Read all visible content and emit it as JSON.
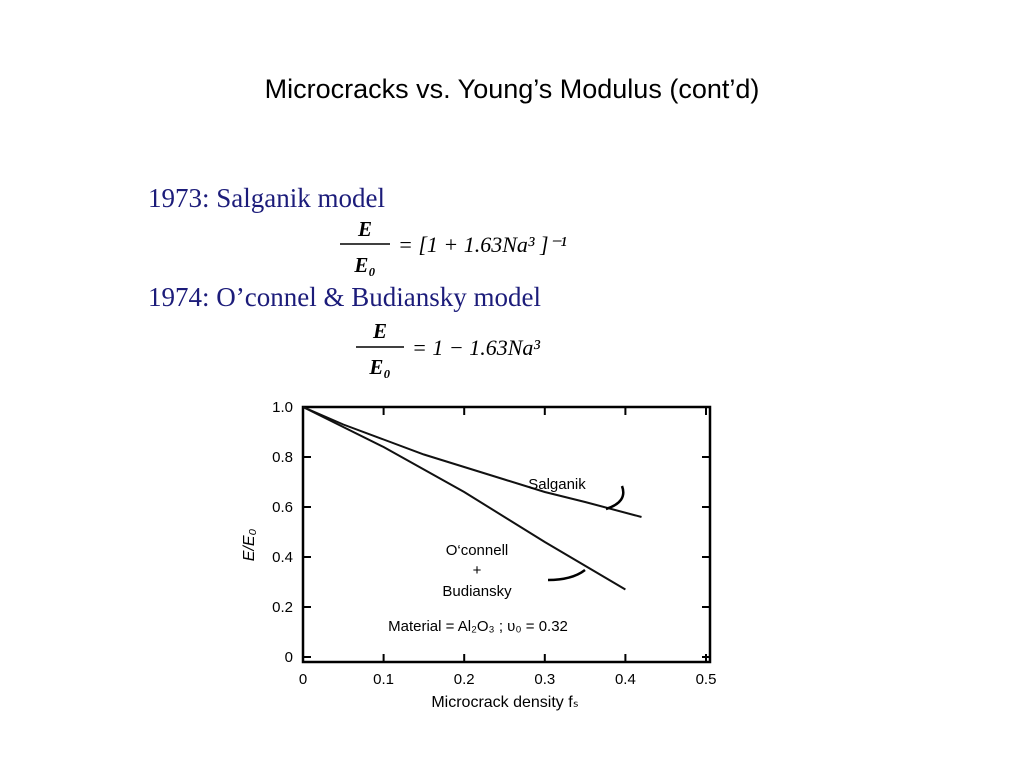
{
  "title": "Microcracks vs. Young’s Modulus (cont’d)",
  "models": [
    {
      "label": "1973: Salganik model",
      "equation": {
        "numerator": "E",
        "denominator": "E₀",
        "rhs": "= [1 + 1.63Na³ ]⁻¹"
      }
    },
    {
      "label": "1974: O’connel & Budiansky model",
      "equation": {
        "numerator": "E",
        "denominator": "E₀",
        "rhs": "= 1 − 1.63Na³"
      }
    }
  ],
  "chart_data": {
    "type": "line",
    "x_label": "Microcrack density fₛ",
    "y_label": "E/E₀",
    "series": [
      {
        "name": "Salganik",
        "color": "#111111",
        "x": [
          0,
          0.05,
          0.1,
          0.15,
          0.2,
          0.25,
          0.3,
          0.35,
          0.42
        ],
        "values": [
          1.0,
          0.93,
          0.87,
          0.81,
          0.76,
          0.71,
          0.66,
          0.62,
          0.56
        ]
      },
      {
        "name": "O‘connell + Budiansky",
        "color": "#111111",
        "x": [
          0,
          0.1,
          0.2,
          0.3,
          0.4
        ],
        "values": [
          1.0,
          0.84,
          0.66,
          0.46,
          0.27
        ]
      }
    ],
    "annotations": [
      "Salganik",
      "O‘connell",
      "+",
      "Budiansky",
      "Material = Al₂O₃ ; υ₀ = 0.32"
    ],
    "xlim": [
      0,
      0.5
    ],
    "ylim": [
      0,
      1.0
    ],
    "xticks": [
      0,
      0.1,
      0.2,
      0.3,
      0.4,
      0.5
    ],
    "yticks": [
      0,
      0.2,
      0.4,
      0.6,
      0.8,
      {
        "value": 1.0,
        "label": "1.0"
      }
    ]
  }
}
